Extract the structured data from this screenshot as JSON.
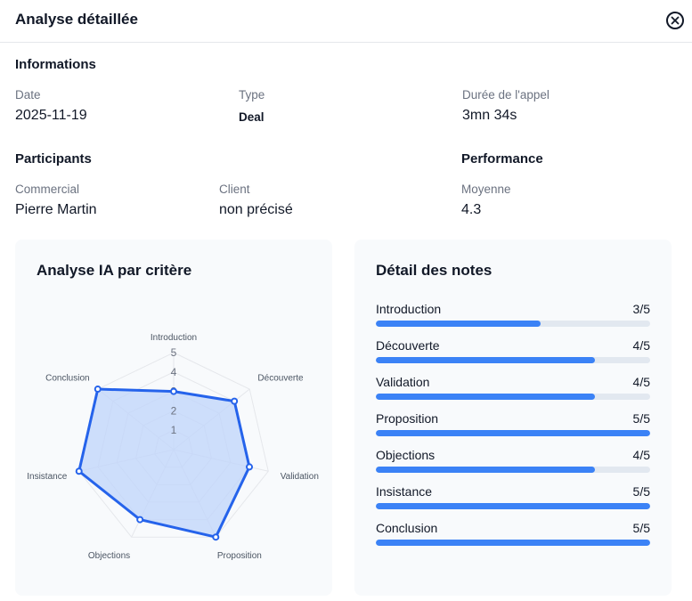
{
  "header": {
    "title": "Analyse détaillée"
  },
  "colors": {
    "accent": "#3b82f6",
    "radar_line": "#2563eb",
    "radar_fill": "#bfd4fb"
  },
  "info": {
    "title": "Informations",
    "date_label": "Date",
    "date_value": "2025-11-19",
    "type_label": "Type",
    "type_value": "Deal",
    "duration_label": "Durée de l'appel",
    "duration_value": "3mn 34s"
  },
  "participants": {
    "title": "Participants",
    "commercial_label": "Commercial",
    "commercial_value": "Pierre Martin",
    "client_label": "Client",
    "client_value": "non précisé"
  },
  "performance": {
    "title": "Performance",
    "average_label": "Moyenne",
    "average_value": "4.3"
  },
  "radar": {
    "title": "Analyse IA par critère",
    "ticks": [
      "1",
      "2",
      "3",
      "4",
      "5"
    ]
  },
  "notes": {
    "title": "Détail des notes"
  },
  "chart_data": {
    "type": "radar",
    "title": "Analyse IA par critère",
    "categories": [
      "Introduction",
      "Découverte",
      "Validation",
      "Proposition",
      "Objections",
      "Insistance",
      "Conclusion"
    ],
    "values": [
      3,
      4,
      4,
      5,
      4,
      5,
      5
    ],
    "max": 5,
    "range": [
      0,
      5
    ],
    "scores": [
      "3/5",
      "4/5",
      "4/5",
      "5/5",
      "4/5",
      "5/5",
      "5/5"
    ]
  }
}
